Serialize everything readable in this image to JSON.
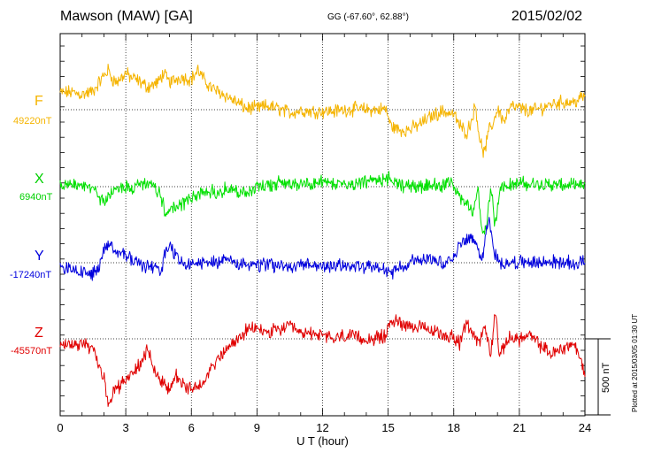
{
  "header": {
    "station": "Mawson (MAW)  [GA]",
    "coords": "GG (-67.60°,  62.88°)",
    "date": "2015/02/02"
  },
  "footer": {
    "plotted": "Plotted at 2015/03/05 01:30 UT",
    "scale_label": "500 nT"
  },
  "colors": {
    "F": "#f5b400",
    "X": "#00e000",
    "Y": "#0000dd",
    "Z": "#e00000"
  },
  "chart_data": {
    "type": "line",
    "title": "Mawson (MAW)  [GA]",
    "xlabel": "U T (hour)",
    "xlim": [
      0,
      24
    ],
    "x_ticks": [
      "0",
      "3",
      "6",
      "9",
      "12",
      "15",
      "18",
      "21",
      "24"
    ],
    "scale_nT": 500,
    "series": [
      {
        "name": "F",
        "baseline_label": "49220nT",
        "color": "#f5b400",
        "x": [
          0,
          0.5,
          1,
          1.5,
          2,
          2.2,
          2.4,
          2.6,
          3,
          3.2,
          3.5,
          4,
          4.5,
          4.7,
          5,
          5.3,
          5.5,
          6,
          6.3,
          6.6,
          7,
          7.5,
          8,
          8.5,
          9,
          9.5,
          10,
          10.5,
          11,
          11.5,
          12,
          12.5,
          13,
          13.5,
          14,
          14.5,
          14.9,
          15.1,
          15.5,
          16,
          16.5,
          17,
          17.5,
          18,
          18.3,
          18.6,
          18.8,
          19,
          19.2,
          19.4,
          19.6,
          19.8,
          20,
          20.3,
          20.6,
          21,
          21.5,
          22,
          22.5,
          23,
          23.5,
          24
        ],
        "values": [
          110,
          115,
          100,
          120,
          225,
          260,
          200,
          180,
          240,
          215,
          195,
          150,
          180,
          240,
          180,
          200,
          215,
          200,
          260,
          190,
          135,
          100,
          55,
          10,
          10,
          25,
          5,
          -20,
          -5,
          -10,
          -10,
          -10,
          0,
          5,
          0,
          0,
          5,
          -100,
          -135,
          -130,
          -90,
          -40,
          -10,
          -30,
          -110,
          -150,
          -70,
          30,
          -210,
          -290,
          -140,
          -90,
          10,
          -80,
          20,
          10,
          -10,
          10,
          40,
          50,
          50,
          90
        ]
      },
      {
        "name": "X",
        "baseline_label": "6940nT",
        "color": "#00e000",
        "x": [
          0,
          0.5,
          1,
          1.5,
          1.8,
          2,
          2.3,
          2.5,
          3,
          3.3,
          3.7,
          4,
          4.3,
          4.6,
          4.8,
          5,
          5.3,
          5.7,
          6,
          6.5,
          7,
          7.5,
          8,
          8.5,
          9,
          9.5,
          10,
          10.5,
          11,
          11.5,
          12,
          12.5,
          13,
          13.5,
          14,
          14.5,
          15,
          15.2,
          15.5,
          16,
          16.5,
          17,
          17.5,
          18,
          18.3,
          18.7,
          18.9,
          19.1,
          19.3,
          19.5,
          19.7,
          19.9,
          20.1,
          20.4,
          21,
          21.5,
          22,
          22.5,
          23,
          23.5,
          24
        ],
        "values": [
          10,
          5,
          -5,
          -15,
          -65,
          -105,
          -60,
          -15,
          -5,
          -5,
          10,
          20,
          -5,
          -60,
          -180,
          -160,
          -120,
          -110,
          -70,
          -50,
          -30,
          -20,
          -25,
          -40,
          -10,
          10,
          20,
          20,
          15,
          15,
          25,
          30,
          20,
          20,
          30,
          30,
          60,
          40,
          10,
          5,
          0,
          5,
          10,
          10,
          -80,
          -135,
          -155,
          -20,
          -300,
          -270,
          -10,
          -260,
          0,
          10,
          20,
          15,
          20,
          10,
          10,
          5,
          0
        ]
      },
      {
        "name": "Y",
        "baseline_label": "-17240nT",
        "color": "#0000dd",
        "x": [
          0,
          0.5,
          1,
          1.5,
          1.8,
          2,
          2.3,
          2.6,
          3,
          3.3,
          3.7,
          4,
          4.3,
          4.6,
          4.8,
          5,
          5.3,
          5.6,
          6,
          6.5,
          7,
          7.5,
          8,
          8.5,
          9,
          9.5,
          10,
          10.5,
          11,
          11.5,
          12,
          12.5,
          13,
          13.5,
          14,
          14.5,
          14.9,
          15.1,
          15.5,
          16,
          16.5,
          17,
          17.5,
          18,
          18.3,
          18.7,
          19,
          19.3,
          19.6,
          19.8,
          20,
          20.3,
          20.7,
          21,
          21.5,
          22,
          22.5,
          23,
          23.5,
          24
        ],
        "values": [
          -20,
          -50,
          -60,
          -70,
          -30,
          90,
          130,
          80,
          40,
          20,
          -10,
          -20,
          -30,
          -80,
          70,
          110,
          40,
          0,
          -10,
          -5,
          5,
          10,
          5,
          -10,
          -20,
          -10,
          -20,
          -30,
          -20,
          -15,
          -25,
          -20,
          -15,
          -20,
          -30,
          -40,
          -50,
          -70,
          -30,
          5,
          20,
          40,
          0,
          20,
          130,
          175,
          120,
          40,
          300,
          100,
          10,
          0,
          0,
          5,
          0,
          0,
          5,
          5,
          -10,
          20
        ]
      },
      {
        "name": "Z",
        "baseline_label": "-45570nT",
        "color": "#e00000",
        "x": [
          0,
          0.5,
          1,
          1.5,
          2,
          2.2,
          2.5,
          2.8,
          3,
          3.5,
          4,
          4.3,
          4.6,
          5,
          5.3,
          5.6,
          6,
          6.5,
          7,
          7.5,
          8,
          8.5,
          9,
          9.5,
          10,
          10.5,
          11,
          11.5,
          12,
          12.5,
          13,
          13.5,
          14,
          14.5,
          14.9,
          15.1,
          15.5,
          16,
          16.5,
          17,
          17.5,
          18,
          18.3,
          18.6,
          18.9,
          19.2,
          19.4,
          19.7,
          19.9,
          20.1,
          20.4,
          20.7,
          21,
          21.5,
          22,
          22.5,
          23,
          23.5,
          24
        ],
        "values": [
          -60,
          -35,
          -30,
          -75,
          -250,
          -430,
          -330,
          -300,
          -250,
          -200,
          -70,
          -200,
          -280,
          -330,
          -240,
          -300,
          -340,
          -280,
          -170,
          -90,
          -20,
          50,
          70,
          40,
          60,
          80,
          30,
          40,
          20,
          0,
          20,
          10,
          -5,
          5,
          20,
          120,
          110,
          90,
          70,
          50,
          30,
          10,
          -30,
          110,
          30,
          -30,
          90,
          -100,
          200,
          -130,
          -10,
          10,
          0,
          20,
          -50,
          -100,
          -60,
          -30,
          -220
        ]
      }
    ]
  }
}
